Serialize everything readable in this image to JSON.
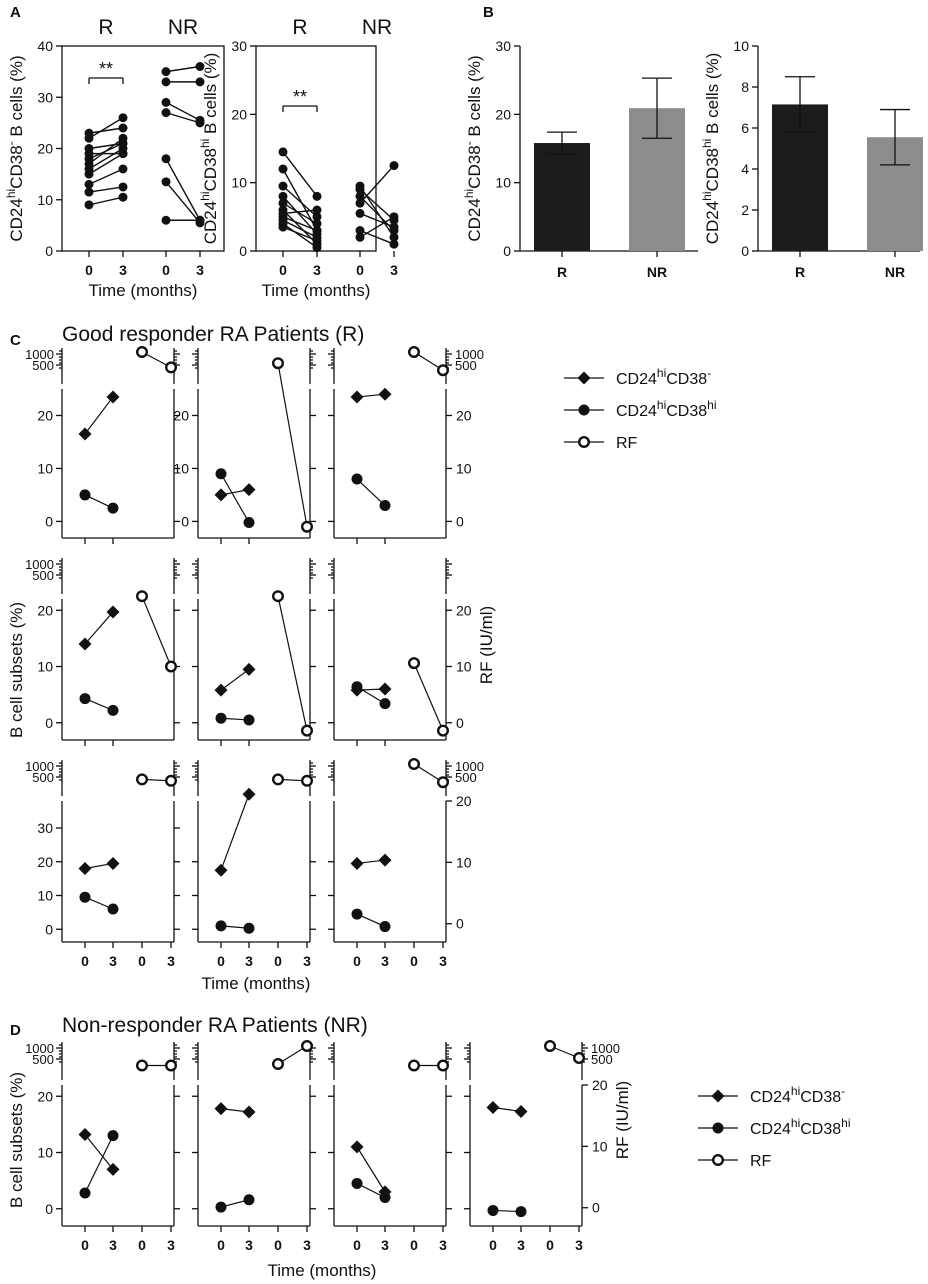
{
  "figure": {
    "panel_letters": [
      "A",
      "B",
      "C",
      "D"
    ],
    "panel_a": {
      "group_labels": [
        "R",
        "NR"
      ],
      "xlabel": "Time (months)",
      "significance": "**"
    },
    "panel_c_title": "Good responder RA Patients (R)",
    "panel_d_title": "Non-responder RA Patients (NR)"
  },
  "legend": {
    "series1": {
      "base": "CD24",
      "sup1": "hi",
      "base2": "CD38",
      "sup2": "-",
      "marker": "filled-diamond"
    },
    "series2": {
      "base": "CD24",
      "sup1": "hi",
      "base2": "CD38",
      "sup2": "hi",
      "marker": "filled-circle"
    },
    "series3": {
      "label": "RF",
      "marker": "open-circle"
    }
  },
  "chart_data": [
    {
      "id": "A1",
      "type": "line",
      "ylabel": "CD24hiCD38- B cells (%)",
      "ylabel_parts": [
        "CD24",
        "hi",
        "CD38",
        "-",
        " B cells (%)"
      ],
      "ylim": [
        0,
        40
      ],
      "yticks": [
        0,
        10,
        20,
        30,
        40
      ],
      "xticks": [
        "0",
        "3",
        "0",
        "3"
      ],
      "xlabel": "Time (months)",
      "title": "R NR",
      "significance": "**",
      "pairs": [
        [
          [
            9,
            10.5
          ],
          [
            11.5,
            12.5
          ],
          [
            13,
            16
          ],
          [
            15,
            19
          ],
          [
            16,
            20
          ],
          [
            17,
            22
          ],
          [
            18,
            21
          ],
          [
            19,
            19
          ],
          [
            20,
            21
          ],
          [
            22,
            26
          ],
          [
            23,
            24
          ]
        ],
        [
          [
            35,
            36
          ],
          [
            33,
            33
          ],
          [
            29,
            25.5
          ],
          [
            27,
            25
          ],
          [
            18,
            6
          ],
          [
            13.5,
            5.5
          ],
          [
            6,
            6
          ]
        ]
      ]
    },
    {
      "id": "A2",
      "type": "line",
      "ylabel": "CD24hiCD38hi B cells (%)",
      "ylabel_parts": [
        "CD24",
        "hi",
        "CD38",
        "hi",
        " B cells (%)"
      ],
      "ylim": [
        0,
        30
      ],
      "yticks": [
        0,
        10,
        20,
        30
      ],
      "xticks": [
        "0",
        "3",
        "0",
        "3"
      ],
      "xlabel": "Time (months)",
      "title": "R NR",
      "significance": "**",
      "pairs": [
        [
          [
            14.5,
            8
          ],
          [
            12,
            3
          ],
          [
            9.5,
            5
          ],
          [
            8,
            2.5
          ],
          [
            7,
            4
          ],
          [
            6,
            1
          ],
          [
            5.5,
            6
          ],
          [
            5,
            3
          ],
          [
            4.5,
            2
          ],
          [
            4,
            0.5
          ],
          [
            3.5,
            1.5
          ]
        ],
        [
          [
            9.5,
            2
          ],
          [
            9,
            4.5
          ],
          [
            8,
            3
          ],
          [
            7,
            12.5
          ],
          [
            5.5,
            3.5
          ],
          [
            3,
            1
          ],
          [
            2,
            5
          ]
        ]
      ]
    },
    {
      "id": "B1",
      "type": "bar",
      "categories": [
        "R",
        "NR"
      ],
      "values": [
        15.8,
        20.9
      ],
      "errors": [
        1.6,
        4.4
      ],
      "colors": [
        "#1c1c1c",
        "#8c8c8c"
      ],
      "ylabel": "CD24hiCD38- B cells (%)",
      "ylabel_parts": [
        "CD24",
        "hi",
        "CD38",
        "-",
        " B cells (%)"
      ],
      "ylim": [
        0,
        30
      ],
      "yticks": [
        0,
        10,
        20,
        30
      ]
    },
    {
      "id": "B2",
      "type": "bar",
      "categories": [
        "R",
        "NR"
      ],
      "values": [
        7.15,
        5.55
      ],
      "errors": [
        1.35,
        1.35
      ],
      "colors": [
        "#1c1c1c",
        "#8c8c8c"
      ],
      "ylabel": "CD24hiCD38hi B cells (%)",
      "ylabel_parts": [
        "CD24",
        "hi",
        "CD38",
        "hi",
        " B cells (%)"
      ],
      "ylim": [
        0,
        10
      ],
      "yticks": [
        0,
        2,
        4,
        6,
        8,
        10
      ]
    },
    {
      "id": "C",
      "type": "line",
      "xlabel": "Time (months)",
      "ylabel_left": "B cell subsets (%)",
      "ylabel_right": "RF (IU/ml)",
      "rf_ticks": [
        "1000",
        "500"
      ],
      "patients": [
        {
          "lim": [
            -2,
            25
          ],
          "lticks": [
            0,
            10,
            20
          ],
          "cd38neg": [
            16.5,
            23.5
          ],
          "cd38hi": [
            5,
            2.5
          ],
          "rf_top": [
            1,
            0.45
          ]
        },
        {
          "lim": [
            -2,
            25
          ],
          "lticks": [
            0,
            10,
            20
          ],
          "rlim": [
            -2,
            20
          ],
          "rticks": [],
          "cd38neg": [
            5,
            6
          ],
          "cd38hi": [
            9,
            -0.2
          ],
          "rf_top": [
            0.6,
            null
          ],
          "rf_main": [
            null,
            -1
          ]
        },
        {
          "lim": [
            -2,
            25
          ],
          "lticks": [],
          "rlim": [
            -2,
            25
          ],
          "rticks": [
            0,
            10,
            20
          ],
          "cd38neg": [
            23.5,
            24
          ],
          "cd38hi": [
            8,
            3
          ],
          "rf_top": [
            1,
            0.35
          ]
        },
        {
          "lim": [
            -2,
            22
          ],
          "lticks": [
            0,
            10,
            20
          ],
          "cd38neg": [
            14,
            19.7
          ],
          "cd38hi": [
            4.3,
            2.2
          ],
          "rf_main": [
            22.5,
            10
          ]
        },
        {
          "lim": [
            -2,
            22
          ],
          "lticks": [],
          "cd38neg": [
            5.8,
            9.5
          ],
          "cd38hi": [
            0.8,
            0.5
          ],
          "rf_main": [
            22.5,
            -1.4
          ]
        },
        {
          "lim": [
            -2,
            22
          ],
          "lticks": [],
          "rlim": [
            -2,
            22
          ],
          "rticks": [
            0,
            10,
            20
          ],
          "cd38neg": [
            5.8,
            6
          ],
          "cd38hi": [
            6.4,
            3.4
          ],
          "rf_main": [
            10.6,
            -1.4
          ]
        },
        {
          "lim": [
            -2,
            38
          ],
          "lticks": [
            0,
            10,
            20,
            30
          ],
          "cd38neg": [
            18,
            19.5
          ],
          "cd38hi": [
            9.5,
            6
          ],
          "rf_top": [
            0.45,
            0.4
          ]
        },
        {
          "lim": [
            -2,
            38
          ],
          "lticks": [],
          "cd38neg": [
            17.5,
            40
          ],
          "cd38hi": [
            1,
            0.3
          ],
          "rf_top": [
            0.45,
            0.4
          ]
        },
        {
          "lim": [
            -2,
            38
          ],
          "lticks": [],
          "rlim": [
            -2,
            20
          ],
          "rticks": [
            0,
            10,
            20
          ],
          "cd38neg": [
            19.5,
            20.5
          ],
          "cd38hi": [
            4.5,
            0.8
          ],
          "rf_top": [
            1,
            0.35
          ]
        }
      ]
    },
    {
      "id": "D",
      "type": "line",
      "xlabel": "Time (months)",
      "ylabel_left": "B cell subsets (%)",
      "ylabel_right": "RF (IU/ml)",
      "rf_ticks": [
        "1000",
        "500"
      ],
      "patients": [
        {
          "lim": [
            -2,
            22
          ],
          "lticks": [
            0,
            10,
            20
          ],
          "cd38neg": [
            13.2,
            7
          ],
          "cd38hi": [
            2.8,
            13
          ],
          "rf_top": [
            0.35,
            0.35
          ]
        },
        {
          "lim": [
            -2,
            22
          ],
          "lticks": [],
          "cd38neg": [
            17.8,
            17.2
          ],
          "cd38hi": [
            0.3,
            1.6
          ],
          "rf_top": [
            0.4,
            1
          ]
        },
        {
          "lim": [
            -2,
            22
          ],
          "lticks": [],
          "cd38neg": [
            11,
            3
          ],
          "cd38hi": [
            4.5,
            2
          ],
          "rf_top": [
            0.35,
            0.35
          ]
        },
        {
          "lim": [
            -2,
            22
          ],
          "lticks": [],
          "rlim": [
            -2,
            20
          ],
          "rticks": [
            0,
            10,
            20
          ],
          "cd38neg": [
            18,
            17.3
          ],
          "cd38hi": [
            -0.3,
            -0.5
          ],
          "rf_top": [
            1,
            0.6
          ]
        }
      ]
    }
  ]
}
